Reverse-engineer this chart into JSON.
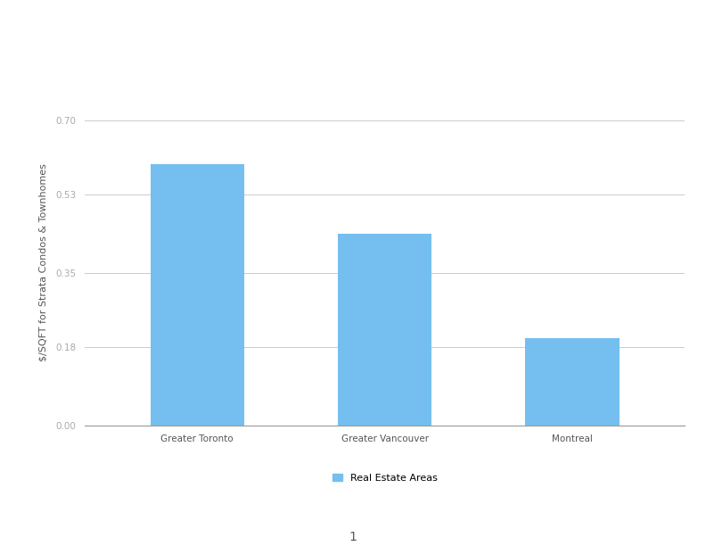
{
  "categories": [
    "Greater Toronto",
    "Greater Vancouver",
    "Montreal"
  ],
  "values": [
    0.6,
    0.44,
    0.2
  ],
  "bar_color": "#74BFEF",
  "ylabel": "$/SQFT for Strata Condos & Townhomes",
  "xlabel": "",
  "title": "",
  "legend_label": "Real Estate Areas",
  "yticks": [
    0.0,
    0.18,
    0.35,
    0.53,
    0.7
  ],
  "ytick_labels": [
    "0.00",
    "0.18",
    "0.35",
    "0.53",
    "0.70"
  ],
  "ylim": [
    0,
    0.75
  ],
  "footer_text": "1",
  "background_color": "#ffffff",
  "grid_color": "#cccccc"
}
